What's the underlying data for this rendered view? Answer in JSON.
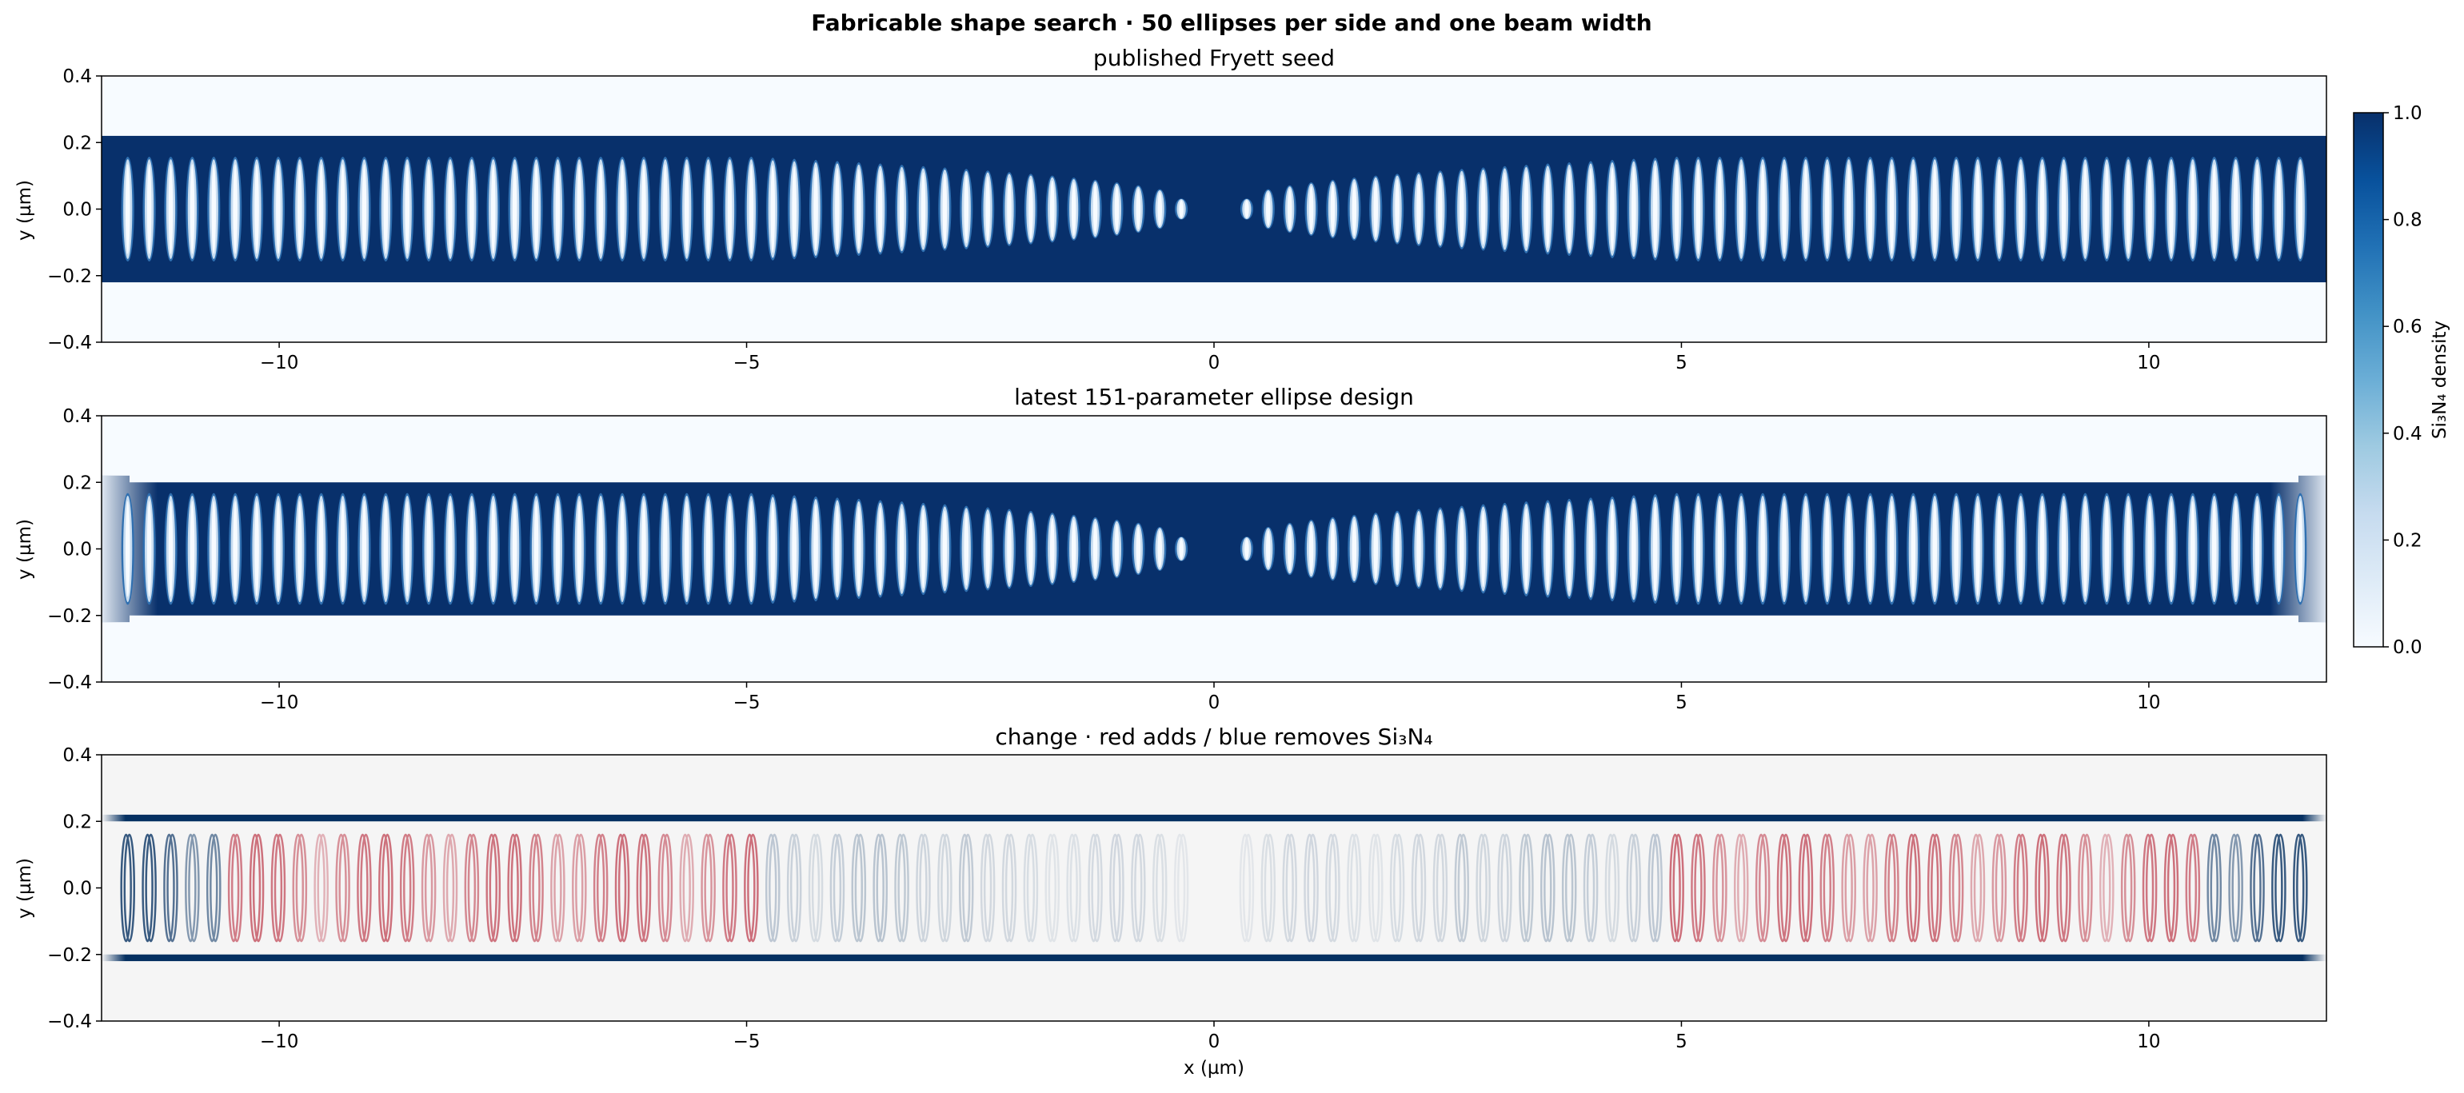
{
  "figure": {
    "suptitle": "Fabricable shape search · 50 ellipses per side and one beam width"
  },
  "chart_data": [
    {
      "type": "heatmap",
      "title": "published Fryett seed",
      "xlabel": "",
      "ylabel": "y (µm)",
      "xlim": [
        -11.9,
        11.9
      ],
      "ylim": [
        -0.4,
        0.4
      ],
      "xticks": [
        -10,
        -5,
        0,
        5,
        10
      ],
      "yticks": [
        -0.4,
        -0.2,
        0.0,
        0.2,
        0.4
      ],
      "xtick_labels": [
        "−10",
        "−5",
        "0",
        "5",
        "10"
      ],
      "ytick_labels": [
        "−0.4",
        "−0.2",
        "0.0",
        "0.2",
        "0.4"
      ],
      "colormap": "Blues",
      "beam_half_width": 0.22,
      "beam_fades_at_ends": false,
      "holes_per_side": 50,
      "hole_pitch": 0.23,
      "hole_center_gap": 0.35,
      "hole_semi_x": 0.06,
      "hole_semi_y_center": 0.03,
      "hole_semi_y_outer": 0.15,
      "taper_holes": 20
    },
    {
      "type": "heatmap",
      "title": "latest 151-parameter ellipse design",
      "xlabel": "",
      "ylabel": "y (µm)",
      "xlim": [
        -11.9,
        11.9
      ],
      "ylim": [
        -0.4,
        0.4
      ],
      "xticks": [
        -10,
        -5,
        0,
        5,
        10
      ],
      "yticks": [
        -0.4,
        -0.2,
        0.0,
        0.2,
        0.4
      ],
      "xtick_labels": [
        "−10",
        "−5",
        "0",
        "5",
        "10"
      ],
      "ytick_labels": [
        "−0.4",
        "−0.2",
        "0.0",
        "0.2",
        "0.4"
      ],
      "colormap": "Blues",
      "beam_half_width": 0.2,
      "end_beam_half_width": 0.22,
      "beam_fades_at_ends": true,
      "holes_per_side": 50,
      "hole_pitch": 0.23,
      "hole_center_gap": 0.35,
      "hole_semi_x": 0.06,
      "hole_semi_y_center": 0.035,
      "hole_semi_y_outer": 0.16,
      "taper_holes": 20
    },
    {
      "type": "heatmap",
      "title": "change · red adds / blue removes Si₃N₄",
      "xlabel": "x (µm)",
      "ylabel": "y (µm)",
      "xlim": [
        -11.9,
        11.9
      ],
      "ylim": [
        -0.4,
        0.4
      ],
      "xticks": [
        -10,
        -5,
        0,
        5,
        10
      ],
      "yticks": [
        -0.4,
        -0.2,
        0.0,
        0.2,
        0.4
      ],
      "xtick_labels": [
        "−10",
        "−5",
        "0",
        "5",
        "10"
      ],
      "ytick_labels": [
        "−0.4",
        "−0.2",
        "0.0",
        "0.2",
        "0.4"
      ],
      "colormap": "RdBu_r",
      "edge_band_y": [
        -0.22,
        -0.2,
        0.2,
        0.22
      ],
      "holes_per_side": 50,
      "hole_pitch": 0.23,
      "hole_center_gap": 0.35,
      "hole_semi_y": 0.16,
      "hole_shift_x": 0.035,
      "change_profile": [
        {
          "holes_from_center": [
            0,
            10
          ],
          "sign": -1,
          "magnitude": 0.15
        },
        {
          "holes_from_center": [
            10,
            20
          ],
          "sign": -1,
          "magnitude": 0.25
        },
        {
          "holes_from_center": [
            20,
            45
          ],
          "sign": 1,
          "magnitude": 0.6
        },
        {
          "holes_from_center": [
            45,
            50
          ],
          "sign": -1,
          "magnitude": 0.8
        }
      ]
    }
  ],
  "colorbar": {
    "label": "Si₃N₄ density",
    "range": [
      0.0,
      1.0
    ],
    "ticks": [
      0.0,
      0.2,
      0.4,
      0.6,
      0.8,
      1.0
    ],
    "tick_labels": [
      "0.0",
      "0.2",
      "0.4",
      "0.6",
      "0.8",
      "1.0"
    ],
    "colormap": "Blues"
  },
  "colors": {
    "blues_dark": "#08306b",
    "blues_light": "#f7fbff",
    "diff_background": "#f5f5f5",
    "red_strong": "#b2182b",
    "blue_strong": "#053061"
  }
}
